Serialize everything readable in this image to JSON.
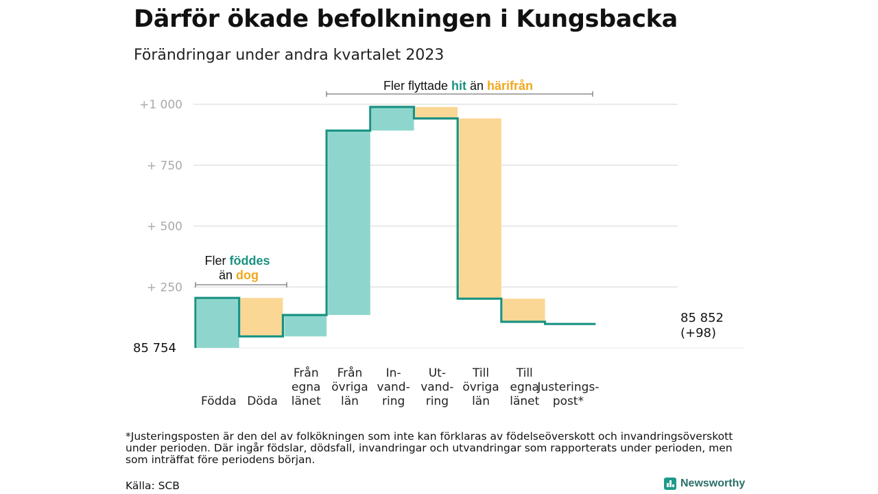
{
  "title": "Därför ökade befolkningen i Kungsbacka",
  "subtitle": "Förändringar under andra kvartalet 2023",
  "chart_data": {
    "type": "waterfall",
    "start_value": 85754,
    "start_label": "85  754",
    "end_value": 85852,
    "end_label": "85 852",
    "end_change_label": "(+98)",
    "y_offset_range": [
      0,
      1000
    ],
    "y_ticks": [
      {
        "value": 1000,
        "label": "+1   000"
      },
      {
        "value": 750,
        "label": "+  750"
      },
      {
        "value": 500,
        "label": "+  500"
      },
      {
        "value": 250,
        "label": "+  250"
      }
    ],
    "grid": true,
    "steps": [
      {
        "label_lines": [
          "Födda"
        ],
        "value": 205,
        "kind": "increase"
      },
      {
        "label_lines": [
          "Döda"
        ],
        "value": -158,
        "kind": "decrease"
      },
      {
        "label_lines": [
          "Från",
          "egna",
          "länet"
        ],
        "value": 88,
        "kind": "increase"
      },
      {
        "label_lines": [
          "Från",
          "övriga",
          "län"
        ],
        "value": 757,
        "kind": "increase"
      },
      {
        "label_lines": [
          "In-",
          "vand-",
          "ring"
        ],
        "value": 97,
        "kind": "increase"
      },
      {
        "label_lines": [
          "Ut-",
          "vand-",
          "ring"
        ],
        "value": -47,
        "kind": "decrease"
      },
      {
        "label_lines": [
          "Till",
          "övriga",
          "län"
        ],
        "value": -740,
        "kind": "decrease"
      },
      {
        "label_lines": [
          "Till",
          "egna",
          "länet"
        ],
        "value": -95,
        "kind": "decrease"
      },
      {
        "label_lines": [
          "Justerings-",
          "post*"
        ],
        "value": -9,
        "kind": "adjust"
      }
    ],
    "annotations": {
      "births": {
        "pre": "Fler",
        "hl1": "föddes",
        "mid": "än",
        "hl2": "dog"
      },
      "migration": {
        "pre": "Fler flyttade",
        "hl1": "hit",
        "mid": "än",
        "hl2": "härifrån"
      }
    },
    "colors": {
      "increase_fill": "#8ed6cd",
      "decrease_fill": "#fbd795",
      "line": "#1a9282",
      "hit": "#1a9282",
      "harifran": "#f0a81e",
      "grid": "#dddddd",
      "tick": "#a9a9a9"
    }
  },
  "footnote": "*Justeringsposten är den del av folkökningen som inte kan förklaras av födelseöverskott och invandringsöverskott under perioden. Där ingår födslar, dödsfall, invandringar och utvandringar som rapporterats under perioden, men som inträffat före periodens början.",
  "source": "Källa: SCB",
  "brand": "Newsworthy"
}
